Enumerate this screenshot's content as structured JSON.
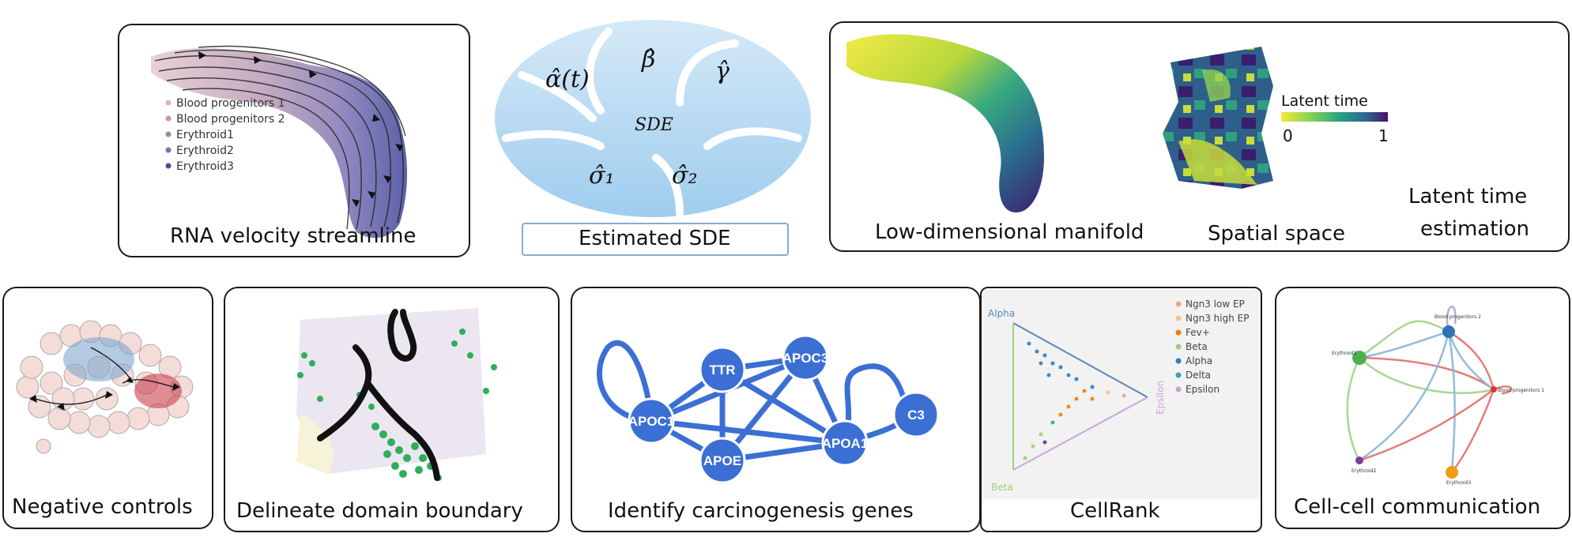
{
  "panels": {
    "velocity": {
      "caption": "RNA velocity streamline",
      "legend": [
        {
          "label": "Blood progenitors 1",
          "color": "#d9b3bf"
        },
        {
          "label": "Blood progenitors 2",
          "color": "#c29aa8"
        },
        {
          "label": "Erythroid1",
          "color": "#9d86ad"
        },
        {
          "label": "Erythroid2",
          "color": "#7b6fb0"
        },
        {
          "label": "Erythroid3",
          "color": "#4a4e9e"
        }
      ]
    },
    "sde": {
      "caption": "Estimated SDE",
      "center_label": "SDE",
      "params": [
        "α̂(t)",
        "β̂",
        "γ̂",
        "σ̂₁",
        "σ̂₂"
      ]
    },
    "latent": {
      "caption_manifold": "Low-dimensional manifold",
      "caption_spatial": "Spatial space",
      "colorbar_title": "Latent time",
      "colorbar_min": "0",
      "colorbar_max": "1",
      "caption_estimation_line1": "Latent time",
      "caption_estimation_line2": "estimation"
    },
    "negative": {
      "caption": "Negative controls"
    },
    "domain": {
      "caption": "Delineate domain boundary"
    },
    "genes": {
      "caption": "Identify carcinogenesis genes",
      "nodes": [
        "TTR",
        "APOC3",
        "APOC1",
        "C3",
        "APOE",
        "APOA1"
      ]
    },
    "cellrank": {
      "caption": "CellRank",
      "axis_labels": {
        "top": "Alpha",
        "right": "Epsilon",
        "bottom": "Beta"
      },
      "legend": [
        {
          "label": "Ngn3 low EP",
          "color": "#f4a582"
        },
        {
          "label": "Ngn3 high EP",
          "color": "#f6c28b"
        },
        {
          "label": "Fev+",
          "color": "#f57c00"
        },
        {
          "label": "Beta",
          "color": "#9ad27e"
        },
        {
          "label": "Alpha",
          "color": "#2a7fc1"
        },
        {
          "label": "Delta",
          "color": "#3b9fa8"
        },
        {
          "label": "Epsilon",
          "color": "#c5a3d9"
        }
      ]
    },
    "communication": {
      "caption": "Cell-cell communication",
      "node_labels": [
        "Blood progenitors 2",
        "Erythroid1",
        "Blood progenitors 1",
        "Erythroid2",
        "Erythroid3"
      ]
    }
  }
}
